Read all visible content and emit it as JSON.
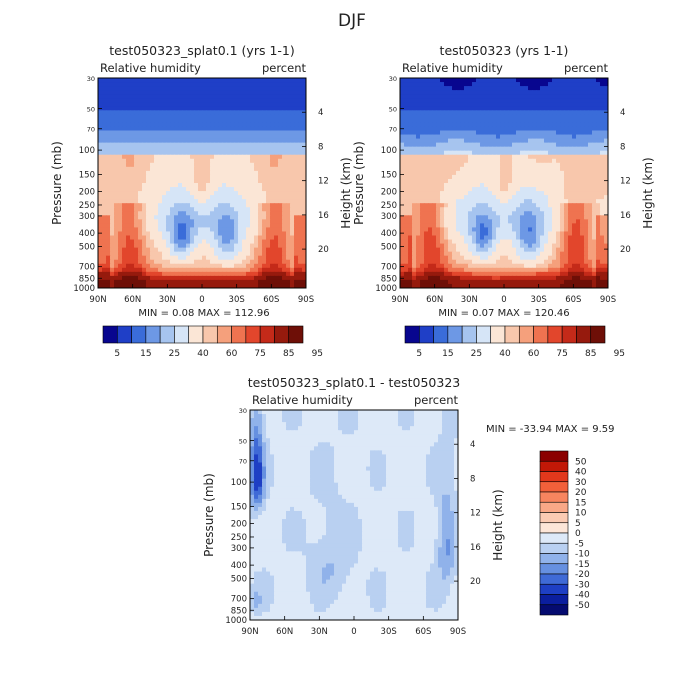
{
  "figure": {
    "title": "DJF"
  },
  "chart_data": [
    {
      "type": "heatmap",
      "panel": "top-left",
      "title": "test050323_splat0.1 (yrs 1-1)",
      "field": "Relative humidity",
      "units": "percent",
      "ylabel": "Pressure (mb)",
      "y2label": "Height (km)",
      "x_ticks": [
        "90N",
        "60N",
        "30N",
        "0",
        "30S",
        "60S",
        "90S"
      ],
      "y_ticks": [
        "30",
        "50",
        "70",
        "100",
        "150",
        "200",
        "250",
        "300",
        "400",
        "500",
        "700",
        "850",
        "1000"
      ],
      "y2_ticks": [
        "20",
        "16",
        "12",
        "8",
        "4"
      ],
      "stats": "MIN =   0.08  MAX = 112.96",
      "colorbar_levels": [
        "5",
        "15",
        "25",
        "40",
        "60",
        "75",
        "85",
        "95"
      ],
      "colorbar_colors": [
        "#08068f",
        "#1f3fc7",
        "#3a6cd9",
        "#6d98e5",
        "#a6c4ef",
        "#d6e5f7",
        "#fbe6d6",
        "#f8c7ac",
        "#f5a07c",
        "#ef7350",
        "#e2462c",
        "#c42a19",
        "#961a0d",
        "#6e0f07"
      ]
    },
    {
      "type": "heatmap",
      "panel": "top-right",
      "title": "test050323 (yrs 1-1)",
      "field": "Relative humidity",
      "units": "percent",
      "ylabel": "Pressure (mb)",
      "y2label": "Height (km)",
      "x_ticks": [
        "90N",
        "60N",
        "30N",
        "0",
        "30S",
        "60S",
        "90S"
      ],
      "y_ticks": [
        "30",
        "50",
        "70",
        "100",
        "150",
        "200",
        "250",
        "300",
        "400",
        "500",
        "700",
        "850",
        "1000"
      ],
      "y2_ticks": [
        "20",
        "16",
        "12",
        "8",
        "4"
      ],
      "stats": "MIN =   0.07  MAX = 120.46",
      "colorbar_levels": [
        "5",
        "15",
        "25",
        "40",
        "60",
        "75",
        "85",
        "95"
      ],
      "colorbar_colors": [
        "#08068f",
        "#1f3fc7",
        "#3a6cd9",
        "#6d98e5",
        "#a6c4ef",
        "#d6e5f7",
        "#fbe6d6",
        "#f8c7ac",
        "#f5a07c",
        "#ef7350",
        "#e2462c",
        "#c42a19",
        "#961a0d",
        "#6e0f07"
      ]
    },
    {
      "type": "heatmap",
      "panel": "bottom",
      "title": "test050323_splat0.1 - test050323",
      "field": "Relative humidity",
      "units": "percent",
      "ylabel": "Pressure (mb)",
      "y2label": "Height (km)",
      "x_ticks": [
        "90N",
        "60N",
        "30N",
        "0",
        "30S",
        "60S",
        "90S"
      ],
      "y_ticks": [
        "30",
        "50",
        "70",
        "100",
        "150",
        "200",
        "250",
        "300",
        "400",
        "500",
        "700",
        "850",
        "1000"
      ],
      "y2_ticks": [
        "20",
        "16",
        "12",
        "8",
        "4"
      ],
      "stats": "MIN = -33.94  MAX =   9.59",
      "colorbar_levels": [
        "50",
        "40",
        "30",
        "20",
        "15",
        "10",
        "5",
        "0",
        "-5",
        "-10",
        "-15",
        "-20",
        "-30",
        "-40",
        "-50"
      ],
      "colorbar_colors": [
        "#8b0000",
        "#c21807",
        "#e2381c",
        "#f2603a",
        "#f7855f",
        "#f9a887",
        "#fbcbb3",
        "#fde6d8",
        "#dde9f8",
        "#b9d0f1",
        "#90b2ea",
        "#6690e0",
        "#3f6ad6",
        "#1e3fc4",
        "#0b1e9e",
        "#050b70"
      ]
    }
  ]
}
